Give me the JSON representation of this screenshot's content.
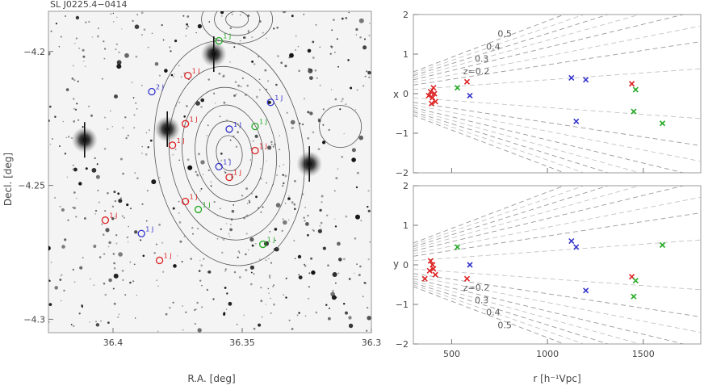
{
  "chart_data": [
    {
      "type": "scatter",
      "title": "SL J0225.4−0414",
      "xlabel": "R.A. [deg]",
      "ylabel": "Decl. [deg]",
      "xlim": [
        36.425,
        36.3
      ],
      "ylim": [
        -4.305,
        -4.185
      ],
      "xticks": [
        36.4,
        36.35,
        36.3
      ],
      "xtick_labels": [
        "36.4",
        "36.35",
        "36.3"
      ],
      "yticks": [
        -4.2,
        -4.25,
        -4.3
      ],
      "ytick_labels": [
        "−4.2",
        "−4.25",
        "−4.3"
      ],
      "bright_sources": [
        {
          "x": 36.361,
          "y": -4.201
        },
        {
          "x": 36.379,
          "y": -4.229
        },
        {
          "x": 36.411,
          "y": -4.233
        },
        {
          "x": 36.324,
          "y": -4.242
        }
      ],
      "galaxies": [
        {
          "x": 36.359,
          "y": -4.196,
          "color": "#22aa22",
          "label": "1 J"
        },
        {
          "x": 36.371,
          "y": -4.209,
          "color": "#dd2222",
          "label": "1 J"
        },
        {
          "x": 36.385,
          "y": -4.215,
          "color": "#3333cc",
          "label": "2 J"
        },
        {
          "x": 36.339,
          "y": -4.219,
          "color": "#3333cc",
          "label": "1 J"
        },
        {
          "x": 36.372,
          "y": -4.227,
          "color": "#dd2222",
          "label": "1 J"
        },
        {
          "x": 36.355,
          "y": -4.229,
          "color": "#3333cc",
          "label": "1 J"
        },
        {
          "x": 36.345,
          "y": -4.228,
          "color": "#22aa22",
          "label": "1 J"
        },
        {
          "x": 36.377,
          "y": -4.235,
          "color": "#dd2222",
          "label": "1 J"
        },
        {
          "x": 36.345,
          "y": -4.237,
          "color": "#dd2222",
          "label": "1 J"
        },
        {
          "x": 36.359,
          "y": -4.243,
          "color": "#3333cc",
          "label": "1 J"
        },
        {
          "x": 36.355,
          "y": -4.247,
          "color": "#dd2222",
          "label": "1 J"
        },
        {
          "x": 36.372,
          "y": -4.256,
          "color": "#dd2222",
          "label": "1 J"
        },
        {
          "x": 36.367,
          "y": -4.259,
          "color": "#22aa22",
          "label": "1 J"
        },
        {
          "x": 36.403,
          "y": -4.263,
          "color": "#dd2222",
          "label": "1 J"
        },
        {
          "x": 36.389,
          "y": -4.268,
          "color": "#3333cc",
          "label": "1 J"
        },
        {
          "x": 36.342,
          "y": -4.272,
          "color": "#22aa22",
          "label": "1 J"
        },
        {
          "x": 36.382,
          "y": -4.278,
          "color": "#dd2222",
          "label": "1 J"
        }
      ]
    },
    {
      "type": "scatter",
      "title": "",
      "xlabel": "",
      "ylabel": "x",
      "xlim": [
        300,
        1800
      ],
      "ylim": [
        -2,
        2
      ],
      "yticks": [
        2,
        1,
        0,
        -1,
        -2
      ],
      "ytick_labels": [
        "2",
        "1",
        "0",
        "−1",
        "−2"
      ],
      "z_lines": [
        {
          "label": "z=0.2",
          "slope": 0.00073
        },
        {
          "label": "0.3",
          "slope": 0.00117
        },
        {
          "label": "0.4",
          "slope": 0.00152
        },
        {
          "label": "0.5",
          "slope": 0.00184
        }
      ],
      "points": [
        {
          "x": 390,
          "y": 0.05,
          "color": "#dd2222"
        },
        {
          "x": 405,
          "y": 0.15,
          "color": "#dd2222"
        },
        {
          "x": 400,
          "y": -0.1,
          "color": "#dd2222"
        },
        {
          "x": 415,
          "y": -0.2,
          "color": "#dd2222"
        },
        {
          "x": 380,
          "y": -0.05,
          "color": "#dd2222"
        },
        {
          "x": 410,
          "y": 0.0,
          "color": "#dd2222"
        },
        {
          "x": 395,
          "y": -0.25,
          "color": "#dd2222"
        },
        {
          "x": 530,
          "y": 0.15,
          "color": "#22aa22"
        },
        {
          "x": 580,
          "y": 0.3,
          "color": "#dd2222"
        },
        {
          "x": 595,
          "y": -0.05,
          "color": "#3333cc"
        },
        {
          "x": 1125,
          "y": 0.4,
          "color": "#3333cc"
        },
        {
          "x": 1200,
          "y": 0.35,
          "color": "#3333cc"
        },
        {
          "x": 1150,
          "y": -0.7,
          "color": "#3333cc"
        },
        {
          "x": 1440,
          "y": 0.25,
          "color": "#dd2222"
        },
        {
          "x": 1460,
          "y": 0.1,
          "color": "#22aa22"
        },
        {
          "x": 1450,
          "y": -0.45,
          "color": "#22aa22"
        },
        {
          "x": 1600,
          "y": -0.75,
          "color": "#22aa22"
        }
      ]
    },
    {
      "type": "scatter",
      "title": "",
      "xlabel": "r [h⁻¹Vpc]",
      "ylabel": "y",
      "xlim": [
        300,
        1800
      ],
      "ylim": [
        -2,
        2
      ],
      "xticks": [
        500,
        1000,
        1500
      ],
      "xtick_labels": [
        "500",
        "1000",
        "1500"
      ],
      "yticks": [
        2,
        1,
        0,
        -1,
        -2
      ],
      "ytick_labels": [
        "2",
        "1",
        "0",
        "−1",
        "−2"
      ],
      "z_lines": [
        {
          "label": "z=0.2",
          "slope": 0.00073
        },
        {
          "label": "0.3",
          "slope": 0.00117
        },
        {
          "label": "0.4",
          "slope": 0.00152
        },
        {
          "label": "0.5",
          "slope": 0.00184
        }
      ],
      "points": [
        {
          "x": 390,
          "y": 0.1,
          "color": "#dd2222"
        },
        {
          "x": 405,
          "y": -0.1,
          "color": "#dd2222"
        },
        {
          "x": 400,
          "y": 0.0,
          "color": "#dd2222"
        },
        {
          "x": 415,
          "y": -0.25,
          "color": "#dd2222"
        },
        {
          "x": 360,
          "y": -0.35,
          "color": "#dd2222"
        },
        {
          "x": 385,
          "y": -0.15,
          "color": "#dd2222"
        },
        {
          "x": 530,
          "y": 0.45,
          "color": "#22aa22"
        },
        {
          "x": 580,
          "y": -0.35,
          "color": "#dd2222"
        },
        {
          "x": 595,
          "y": 0.0,
          "color": "#3333cc"
        },
        {
          "x": 1125,
          "y": 0.6,
          "color": "#3333cc"
        },
        {
          "x": 1150,
          "y": 0.45,
          "color": "#3333cc"
        },
        {
          "x": 1200,
          "y": -0.65,
          "color": "#3333cc"
        },
        {
          "x": 1440,
          "y": -0.3,
          "color": "#dd2222"
        },
        {
          "x": 1460,
          "y": -0.4,
          "color": "#22aa22"
        },
        {
          "x": 1450,
          "y": -0.8,
          "color": "#22aa22"
        },
        {
          "x": 1600,
          "y": 0.5,
          "color": "#22aa22"
        }
      ]
    }
  ]
}
